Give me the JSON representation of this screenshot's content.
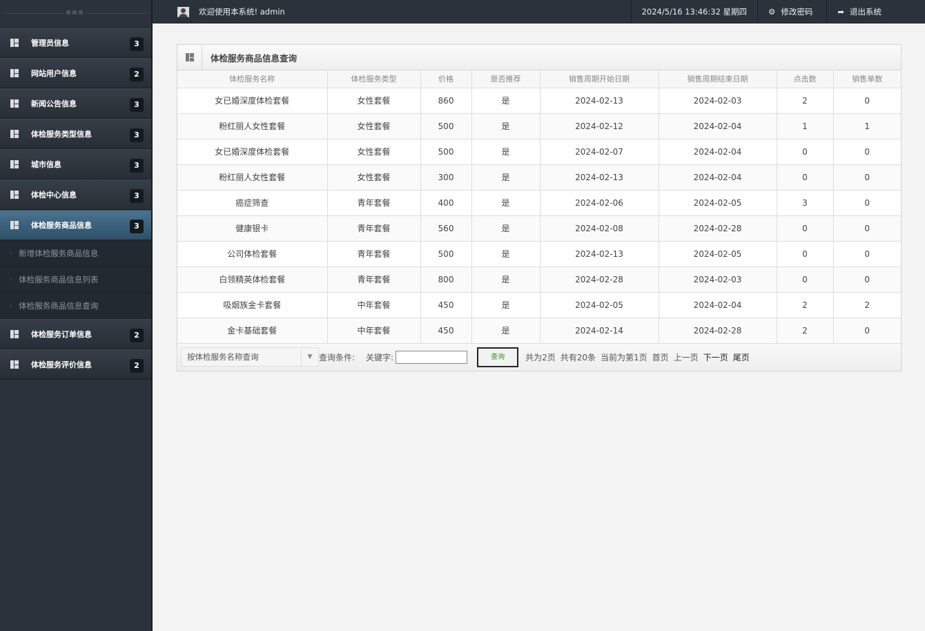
{
  "topbar": {
    "welcome": "欢迎使用本系统! admin",
    "datetime": "2024/5/16 13:46:32 星期四",
    "change_password": "修改密码",
    "logout": "退出系统"
  },
  "sidebar": {
    "items": [
      {
        "label": "管理员信息",
        "count": "3"
      },
      {
        "label": "网站用户信息",
        "count": "2"
      },
      {
        "label": "新闻公告信息",
        "count": "3"
      },
      {
        "label": "体检服务类型信息",
        "count": "3"
      },
      {
        "label": "城市信息",
        "count": "3"
      },
      {
        "label": "体检中心信息",
        "count": "3"
      },
      {
        "label": "体检服务商品信息",
        "count": "3",
        "active": true
      },
      {
        "label": "体检服务订单信息",
        "count": "2"
      },
      {
        "label": "体检服务评价信息",
        "count": "2"
      }
    ],
    "sub_items": [
      "新增体检服务商品信息",
      "体检服务商品信息列表",
      "体检服务商品信息查询"
    ]
  },
  "panel": {
    "title": "体检服务商品信息查询",
    "columns": [
      "体检服务名称",
      "体检服务类型",
      "价格",
      "是否推荐",
      "销售周期开始日期",
      "销售周期结束日期",
      "点击数",
      "销售单数"
    ],
    "rows": [
      [
        "女已婚深度体检套餐",
        "女性套餐",
        "860",
        "是",
        "2024-02-13",
        "2024-02-03",
        "2",
        "0"
      ],
      [
        "粉红丽人女性套餐",
        "女性套餐",
        "500",
        "是",
        "2024-02-12",
        "2024-02-04",
        "1",
        "1"
      ],
      [
        "女已婚深度体检套餐",
        "女性套餐",
        "500",
        "是",
        "2024-02-07",
        "2024-02-04",
        "0",
        "0"
      ],
      [
        "粉红丽人女性套餐",
        "女性套餐",
        "300",
        "是",
        "2024-02-13",
        "2024-02-04",
        "0",
        "0"
      ],
      [
        "癌症筛查",
        "青年套餐",
        "400",
        "是",
        "2024-02-06",
        "2024-02-05",
        "3",
        "0"
      ],
      [
        "健康银卡",
        "青年套餐",
        "560",
        "是",
        "2024-02-08",
        "2024-02-28",
        "0",
        "0"
      ],
      [
        "公司体检套餐",
        "青年套餐",
        "500",
        "是",
        "2024-02-13",
        "2024-02-05",
        "0",
        "0"
      ],
      [
        "白领精英体检套餐",
        "青年套餐",
        "800",
        "是",
        "2024-02-28",
        "2024-02-03",
        "0",
        "0"
      ],
      [
        "吸烟族金卡套餐",
        "中年套餐",
        "450",
        "是",
        "2024-02-05",
        "2024-02-04",
        "2",
        "2"
      ],
      [
        "金卡基础套餐",
        "中年套餐",
        "450",
        "是",
        "2024-02-14",
        "2024-02-28",
        "2",
        "0"
      ]
    ]
  },
  "footer": {
    "select_value": "按体检服务名称查询",
    "condition_label": "查询条件:",
    "keyword_label": "关键字:",
    "keyword_value": "",
    "search_button": "查询",
    "total_pages": "共为2页",
    "total_records": "共有20条",
    "current_page": "当前为第1页",
    "first": "首页",
    "prev": "上一页",
    "next": "下一页",
    "last": "尾页"
  }
}
